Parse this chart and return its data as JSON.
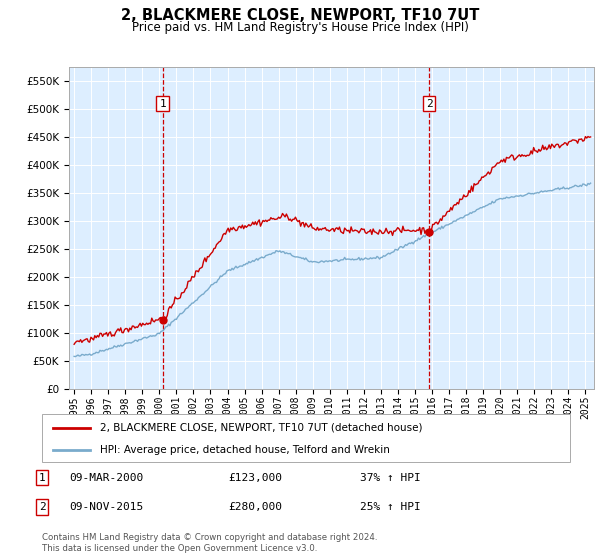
{
  "title": "2, BLACKMERE CLOSE, NEWPORT, TF10 7UT",
  "subtitle": "Price paid vs. HM Land Registry's House Price Index (HPI)",
  "sale1_date": "09-MAR-2000",
  "sale1_price": 123000,
  "sale1_label": "1",
  "sale1_hpi_pct": "37% ↑ HPI",
  "sale2_date": "09-NOV-2015",
  "sale2_price": 280000,
  "sale2_label": "2",
  "sale2_hpi_pct": "25% ↑ HPI",
  "legend_line1": "2, BLACKMERE CLOSE, NEWPORT, TF10 7UT (detached house)",
  "legend_line2": "HPI: Average price, detached house, Telford and Wrekin",
  "footer": "Contains HM Land Registry data © Crown copyright and database right 2024.\nThis data is licensed under the Open Government Licence v3.0.",
  "line_color_red": "#cc0000",
  "line_color_blue": "#7aabcc",
  "background_color": "#ddeeff",
  "ylim": [
    0,
    575000
  ],
  "yticks": [
    0,
    50000,
    100000,
    150000,
    200000,
    250000,
    300000,
    350000,
    400000,
    450000,
    500000,
    550000
  ],
  "xmin": 1994.7,
  "xmax": 2025.5,
  "sale1_x": 2000.19,
  "sale2_x": 2015.84
}
